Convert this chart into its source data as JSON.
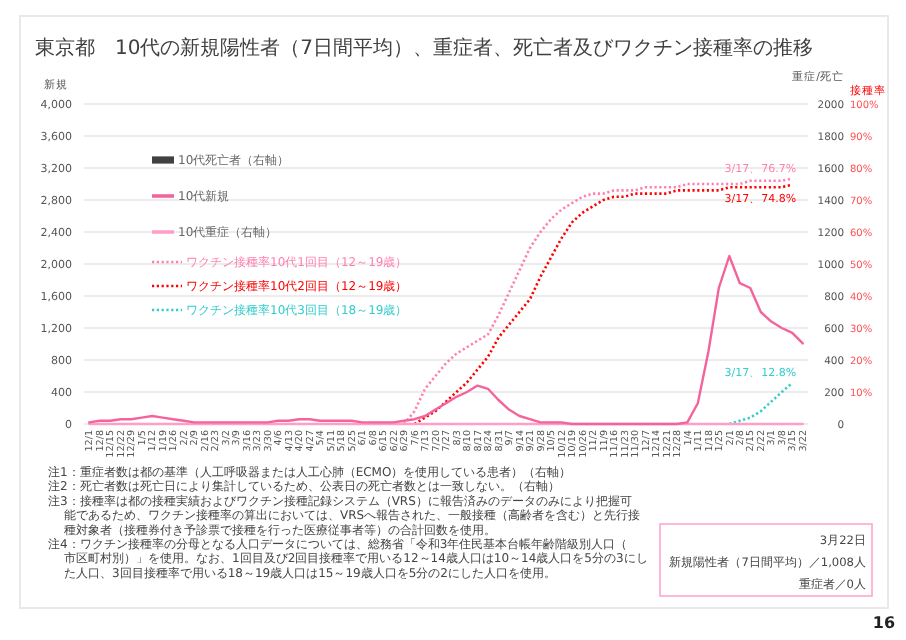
{
  "chart_data": {
    "type": "line",
    "title": "東京都　10代の新規陽性者（7日間平均）、重症者、死亡者及びワクチン接種率の推移",
    "ylabel": "新規",
    "y2label": "重症/死亡",
    "y3label": "接種率",
    "categories": [
      "12/1",
      "12/8",
      "12/15",
      "12/22",
      "12/29",
      "1/5",
      "1/12",
      "1/19",
      "1/26",
      "2/2",
      "2/9",
      "2/16",
      "2/23",
      "3/2",
      "3/9",
      "3/16",
      "3/23",
      "3/30",
      "4/6",
      "4/13",
      "4/20",
      "4/27",
      "5/4",
      "5/11",
      "5/18",
      "5/25",
      "6/1",
      "6/8",
      "6/15",
      "6/22",
      "6/29",
      "7/6",
      "7/13",
      "7/20",
      "7/27",
      "8/3",
      "8/10",
      "8/17",
      "8/24",
      "8/31",
      "9/7",
      "9/14",
      "9/21",
      "9/28",
      "10/5",
      "10/12",
      "10/19",
      "10/26",
      "11/2",
      "11/9",
      "11/16",
      "11/23",
      "11/30",
      "12/7",
      "12/14",
      "12/21",
      "12/28",
      "1/4",
      "1/11",
      "1/18",
      "1/25",
      "2/1",
      "2/8",
      "2/15",
      "2/22",
      "3/1",
      "3/8",
      "3/15",
      "3/22"
    ],
    "ylim": [
      0,
      4000
    ],
    "yticks": [
      0,
      {
        "value": 400,
        "label": "400"
      },
      {
        "value": 800,
        "label": "800"
      },
      {
        "value": 1200,
        "label": "1,200"
      },
      {
        "value": 1600,
        "label": "1,600"
      },
      {
        "value": 2000,
        "label": "2,000"
      },
      {
        "value": 2400,
        "label": "2,400"
      },
      {
        "value": 2800,
        "label": "2,800"
      },
      {
        "value": 3200,
        "label": "3,200"
      },
      {
        "value": 3600,
        "label": "3,600"
      },
      {
        "value": 4000,
        "label": "4,000"
      }
    ],
    "y2lim": [
      0,
      2000
    ],
    "y2ticks": [
      0,
      200,
      400,
      600,
      800,
      1000,
      1200,
      1400,
      1600,
      1800,
      2000
    ],
    "y3lim": [
      0,
      100
    ],
    "y3ticks": [
      {
        "value": 10,
        "label": "10%"
      },
      {
        "value": 20,
        "label": "20%"
      },
      {
        "value": 30,
        "label": "30%"
      },
      {
        "value": 40,
        "label": "40%"
      },
      {
        "value": 50,
        "label": "50%"
      },
      {
        "value": 60,
        "label": "60%"
      },
      {
        "value": 70,
        "label": "70%"
      },
      {
        "value": 80,
        "label": "80%"
      },
      {
        "value": 90,
        "label": "90%"
      },
      {
        "value": 100,
        "label": "100%"
      }
    ],
    "grid": "y",
    "legend": "left",
    "marker": "none",
    "series": [
      {
        "name": "10代死亡者（右軸）",
        "type": "bar",
        "axis": "y2",
        "color": "#404040",
        "values": [
          0,
          0,
          0,
          0,
          0,
          0,
          0,
          0,
          0,
          0,
          0,
          0,
          0,
          0,
          0,
          0,
          0,
          0,
          0,
          0,
          0,
          0,
          0,
          0,
          0,
          0,
          0,
          0,
          0,
          0,
          0,
          0,
          0,
          0,
          0,
          0,
          0,
          0,
          0,
          0,
          0,
          0,
          0,
          0,
          0,
          0,
          0,
          0,
          0,
          0,
          0,
          0,
          0,
          0,
          0,
          0,
          0,
          0,
          0,
          0,
          0,
          0,
          0,
          0,
          0,
          0,
          0,
          0,
          0
        ]
      },
      {
        "name": "10代新規",
        "line_style": "solid",
        "color": "#f4649c",
        "values": [
          20,
          40,
          40,
          60,
          60,
          80,
          100,
          80,
          60,
          40,
          20,
          20,
          20,
          20,
          20,
          20,
          20,
          20,
          40,
          40,
          60,
          60,
          40,
          40,
          40,
          40,
          20,
          20,
          20,
          20,
          40,
          60,
          100,
          180,
          260,
          340,
          400,
          480,
          440,
          300,
          180,
          100,
          60,
          20,
          20,
          20,
          0,
          0,
          0,
          0,
          0,
          0,
          0,
          0,
          0,
          0,
          0,
          20,
          260,
          900,
          1700,
          2100,
          1760,
          1700,
          1400,
          1280,
          1200,
          1140,
          1008
        ]
      },
      {
        "name": "10代重症（右軸）",
        "axis": "y2",
        "line_style": "solid",
        "color": "#ff9fc8",
        "values": [
          0,
          0,
          0,
          0,
          0,
          0,
          0,
          0,
          0,
          0,
          0,
          0,
          0,
          0,
          0,
          0,
          0,
          0,
          0,
          0,
          0,
          0,
          0,
          0,
          0,
          0,
          0,
          0,
          0,
          0,
          0,
          0,
          0,
          0,
          0,
          0,
          0,
          0,
          0,
          0,
          0,
          0,
          0,
          0,
          0,
          0,
          0,
          0,
          0,
          0,
          0,
          0,
          0,
          0,
          0,
          0,
          0,
          0,
          0,
          0,
          0,
          0,
          0,
          0,
          0,
          0,
          0,
          0,
          0
        ]
      },
      {
        "name": "ワクチン接種率10代1回目（12～19歳）",
        "axis": "y3",
        "line_style": "dotted",
        "color": "#ff7fb0",
        "values": [
          null,
          null,
          null,
          null,
          null,
          null,
          null,
          null,
          null,
          null,
          null,
          null,
          null,
          null,
          null,
          null,
          null,
          null,
          null,
          null,
          null,
          null,
          null,
          null,
          null,
          null,
          null,
          null,
          null,
          null,
          0,
          4,
          11,
          15,
          19,
          22,
          24,
          26,
          28,
          34,
          41,
          48,
          55,
          60,
          64,
          67,
          69,
          71,
          72,
          72,
          73,
          73,
          73,
          74,
          74,
          74,
          74,
          75,
          75,
          75,
          75,
          75,
          75,
          76,
          76,
          76,
          76,
          76.7,
          null
        ]
      },
      {
        "name": "ワクチン接種率10代2回目（12～19歳）",
        "axis": "y3",
        "line_style": "dotted",
        "color": "#ff0000",
        "values": [
          null,
          null,
          null,
          null,
          null,
          null,
          null,
          null,
          null,
          null,
          null,
          null,
          null,
          null,
          null,
          null,
          null,
          null,
          null,
          null,
          null,
          null,
          null,
          null,
          null,
          null,
          null,
          null,
          null,
          null,
          null,
          0,
          2,
          4,
          7,
          10,
          13,
          17,
          21,
          27,
          31,
          35,
          39,
          46,
          52,
          58,
          63,
          66,
          68,
          70,
          71,
          71,
          72,
          72,
          72,
          72,
          73,
          73,
          73,
          73,
          73,
          74,
          74,
          74,
          74,
          74,
          74,
          74.8,
          null
        ]
      },
      {
        "name": "ワクチン接種率10代3回目（18～19歳）",
        "axis": "y3",
        "line_style": "dotted",
        "color": "#33cccc",
        "values": [
          null,
          null,
          null,
          null,
          null,
          null,
          null,
          null,
          null,
          null,
          null,
          null,
          null,
          null,
          null,
          null,
          null,
          null,
          null,
          null,
          null,
          null,
          null,
          null,
          null,
          null,
          null,
          null,
          null,
          null,
          null,
          null,
          null,
          null,
          null,
          null,
          null,
          null,
          null,
          null,
          null,
          null,
          null,
          null,
          null,
          null,
          null,
          null,
          null,
          null,
          null,
          null,
          null,
          null,
          null,
          null,
          null,
          null,
          null,
          null,
          null,
          0,
          1,
          2,
          4,
          7,
          10,
          12.8,
          null
        ]
      }
    ],
    "annotations": [
      "3/17、76.7%",
      "3/17、74.8%",
      "3/17、12.8%",
      "注1：重症者数は都の基準（人工呼吸器または人工心肺（ECMO）を使用している患者）（右軸）",
      "注2：死亡者数は死亡日により集計しているため、公表日の死亡者数とは一致しない。（右軸）",
      "注3：接種率は都の接種実績およびワクチン接種記録システム（VRS）に報告済みのデータのみにより把握可能であるため、ワクチン接種率の算出においては、VRSへ報告された、一般接種（高齢者を含む）と先行接種対象者（接種券付き予診票で接種を行った医療従事者等）の合計回数を使用。",
      "注4：ワクチン接種率の分母となる人口データについては、総務省「令和3年住民基本台帳年齢階級別人口（市区町村別）」を使用。なお、1回目及び2回目接種率で用いる12～14歳人口は10～14歳人口を5分の3にした人口、3回目接種率で用いる18～19歳人口は15～19歳人口を5分の2にした人口を使用。",
      "3月22日",
      "新規陽性者（7日間平均）／1,008人",
      "重症者／0人",
      "16"
    ]
  }
}
